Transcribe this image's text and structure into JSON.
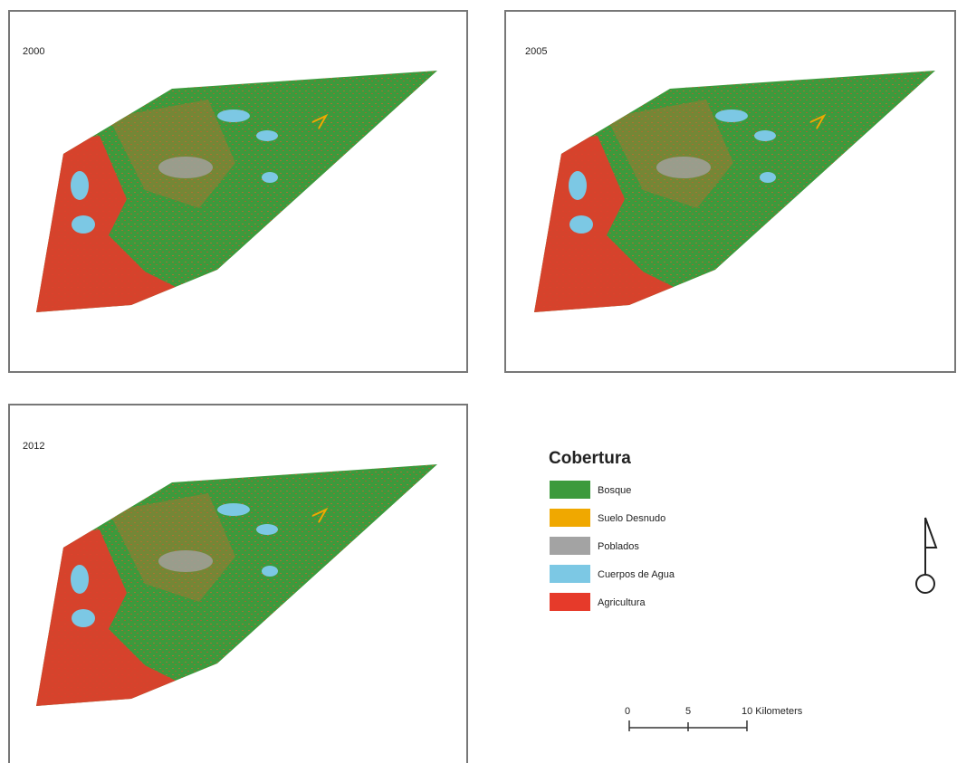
{
  "panels": [
    {
      "label": "2000"
    },
    {
      "label": "2005"
    },
    {
      "label": "2012"
    }
  ],
  "legend": {
    "title": "Cobertura",
    "items": [
      {
        "label": "Bosque",
        "color": "#3c9a3c"
      },
      {
        "label": "Suelo Desnudo",
        "color": "#f0a800"
      },
      {
        "label": "Poblados",
        "color": "#a3a3a3"
      },
      {
        "label": "Cuerpos de Agua",
        "color": "#7cc8e4"
      },
      {
        "label": "Agricultura",
        "color": "#e63a2a"
      }
    ]
  },
  "scale_bar": {
    "labels": [
      "0",
      "5",
      "10 Kilometers"
    ]
  }
}
